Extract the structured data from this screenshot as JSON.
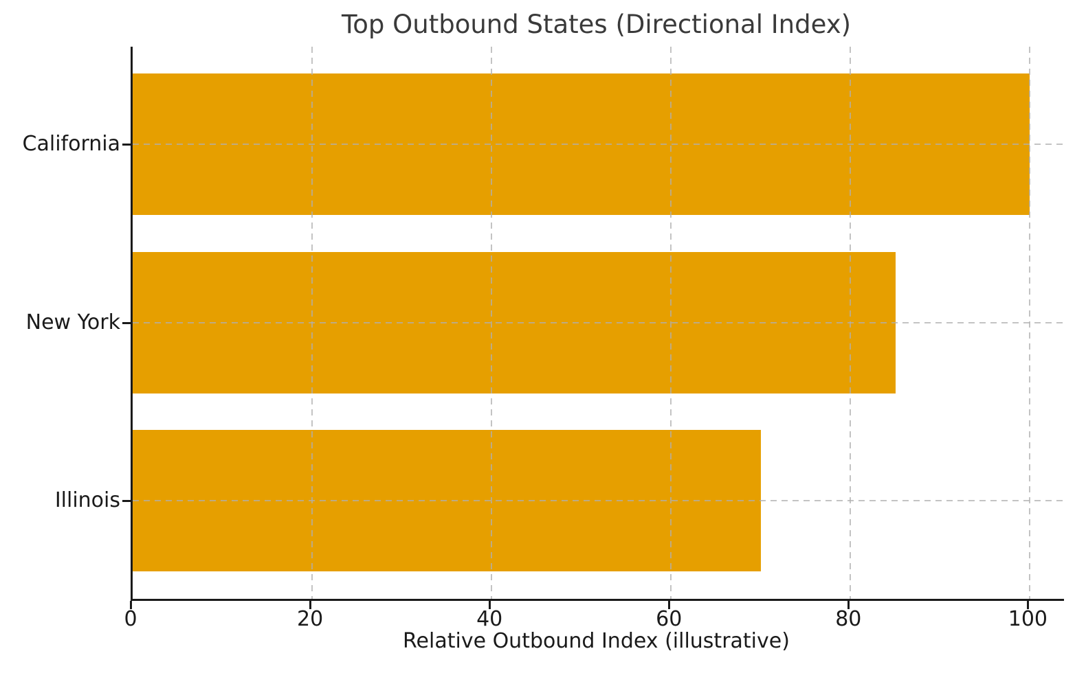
{
  "chart": {
    "title": "Top Outbound States (Directional Index)",
    "xlabel": "Relative Outbound Index (illustrative)"
  },
  "chart_data": {
    "type": "bar",
    "orientation": "horizontal",
    "title": "Top Outbound States (Directional Index)",
    "xlabel": "Relative Outbound Index (illustrative)",
    "ylabel": "",
    "categories": [
      "California",
      "New York",
      "Illinois"
    ],
    "values": [
      100,
      85,
      70
    ],
    "xticks": [
      0,
      20,
      40,
      60,
      80,
      100
    ],
    "xlim": [
      0,
      103.8
    ],
    "grid": true,
    "grid_style": "dashed",
    "legend": "none",
    "bar_color": "#E69F00",
    "background_color": "#ffffff",
    "grid_color": "#afafaf",
    "axis_color": "#1a1a1a",
    "text_color": "#1a1a1a"
  }
}
